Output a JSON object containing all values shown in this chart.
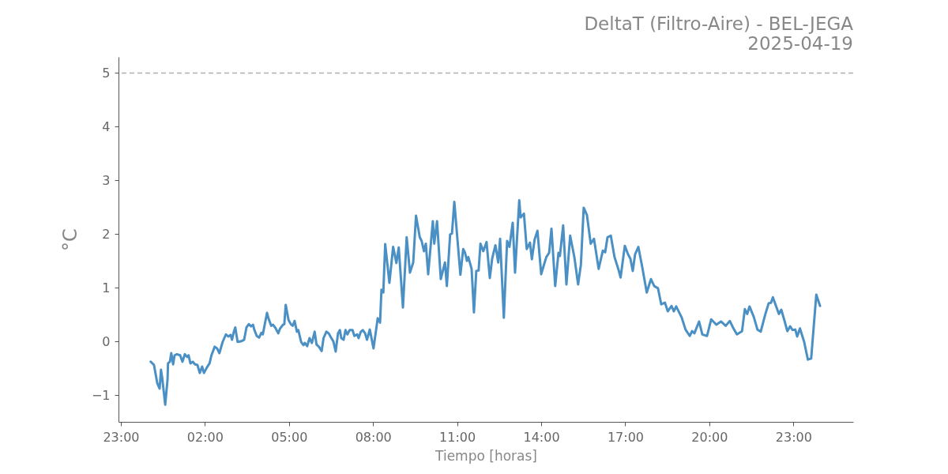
{
  "chart_data": {
    "type": "line",
    "title": "DeltaT (Filtro-Aire) - BEL-JEGA",
    "subtitle": "2025-04-19",
    "xlabel": "Tiempo [horas]",
    "ylabel": "°C",
    "color": "#4a90c4",
    "grid": false,
    "xlim": [
      "2025-04-18T22:55",
      "2025-04-20T01:08"
    ],
    "ylim": [
      -1.5,
      5.3
    ],
    "xticks": [
      {
        "value": "2025-04-18T23:00",
        "label": "23:00"
      },
      {
        "value": "2025-04-19T02:00",
        "label": "02:00"
      },
      {
        "value": "2025-04-19T05:00",
        "label": "05:00"
      },
      {
        "value": "2025-04-19T08:00",
        "label": "08:00"
      },
      {
        "value": "2025-04-19T11:00",
        "label": "11:00"
      },
      {
        "value": "2025-04-19T14:00",
        "label": "14:00"
      },
      {
        "value": "2025-04-19T17:00",
        "label": "17:00"
      },
      {
        "value": "2025-04-19T20:00",
        "label": "20:00"
      },
      {
        "value": "2025-04-19T23:00",
        "label": "23:00"
      }
    ],
    "yticks": [
      {
        "value": -1,
        "label": "−1"
      },
      0,
      1,
      2,
      3,
      4,
      5
    ],
    "ref_lines": [
      {
        "axis": "y",
        "value": 5,
        "color": "#b0b0b0",
        "line_style": "dashed"
      }
    ],
    "x": [
      "2025-04-19T00:04",
      "2025-04-19T00:11",
      "2025-04-19T00:18",
      "2025-04-19T00:23",
      "2025-04-19T00:26",
      "2025-04-19T00:29",
      "2025-04-19T00:35",
      "2025-04-19T00:40",
      "2025-04-19T00:41",
      "2025-04-19T00:45",
      "2025-04-19T00:48",
      "2025-04-19T00:52",
      "2025-04-19T00:55",
      "2025-04-19T01:00",
      "2025-04-19T01:07",
      "2025-04-19T01:12",
      "2025-04-19T01:17",
      "2025-04-19T01:22",
      "2025-04-19T01:25",
      "2025-04-19T01:29",
      "2025-04-19T01:34",
      "2025-04-19T01:39",
      "2025-04-19T01:44",
      "2025-04-19T01:49",
      "2025-04-19T01:54",
      "2025-04-19T01:58",
      "2025-04-19T02:04",
      "2025-04-19T02:10",
      "2025-04-19T02:14",
      "2025-04-19T02:21",
      "2025-04-19T02:26",
      "2025-04-19T02:31",
      "2025-04-19T02:38",
      "2025-04-19T02:45",
      "2025-04-19T02:50",
      "2025-04-19T02:55",
      "2025-04-19T02:58",
      "2025-04-19T03:02",
      "2025-04-19T03:05",
      "2025-04-19T03:10",
      "2025-04-19T03:17",
      "2025-04-19T03:24",
      "2025-04-19T03:29",
      "2025-04-19T03:34",
      "2025-04-19T03:39",
      "2025-04-19T03:43",
      "2025-04-19T03:46",
      "2025-04-19T03:51",
      "2025-04-19T03:56",
      "2025-04-19T04:01",
      "2025-04-19T04:04",
      "2025-04-19T04:10",
      "2025-04-19T04:13",
      "2025-04-19T04:16",
      "2025-04-19T04:22",
      "2025-04-19T04:26",
      "2025-04-19T04:31",
      "2025-04-19T04:37",
      "2025-04-19T04:41",
      "2025-04-19T04:47",
      "2025-04-19T04:50",
      "2025-04-19T04:53",
      "2025-04-19T04:59",
      "2025-04-19T05:04",
      "2025-04-19T05:08",
      "2025-04-19T05:12",
      "2025-04-19T05:17",
      "2025-04-19T05:20",
      "2025-04-19T05:26",
      "2025-04-19T05:31",
      "2025-04-19T05:34",
      "2025-04-19T05:39",
      "2025-04-19T05:44",
      "2025-04-19T05:49",
      "2025-04-19T05:55",
      "2025-04-19T05:59",
      "2025-04-19T06:04",
      "2025-04-19T06:10",
      "2025-04-19T06:14",
      "2025-04-19T06:20",
      "2025-04-19T06:25",
      "2025-04-19T06:30",
      "2025-04-19T06:35",
      "2025-04-19T06:40",
      "2025-04-19T06:45",
      "2025-04-19T06:49",
      "2025-04-19T06:52",
      "2025-04-19T06:57",
      "2025-04-19T07:01",
      "2025-04-19T07:05",
      "2025-04-19T07:10",
      "2025-04-19T07:16",
      "2025-04-19T07:20",
      "2025-04-19T07:26",
      "2025-04-19T07:29",
      "2025-04-19T07:34",
      "2025-04-19T07:38",
      "2025-04-19T07:43",
      "2025-04-19T07:47",
      "2025-04-19T07:53",
      "2025-04-19T08:01",
      "2025-04-19T08:10",
      "2025-04-19T08:15",
      "2025-04-19T08:18",
      "2025-04-19T08:22",
      "2025-04-19T08:26",
      "2025-04-19T08:35",
      "2025-04-19T08:43",
      "2025-04-19T08:50",
      "2025-04-19T08:55",
      "2025-04-19T09:04",
      "2025-04-19T09:12",
      "2025-04-19T09:19",
      "2025-04-19T09:26",
      "2025-04-19T09:32",
      "2025-04-19T09:40",
      "2025-04-19T09:44",
      "2025-04-19T09:49",
      "2025-04-19T09:53",
      "2025-04-19T09:58",
      "2025-04-19T10:08",
      "2025-04-19T10:11",
      "2025-04-19T10:17",
      "2025-04-19T10:25",
      "2025-04-19T10:34",
      "2025-04-19T10:38",
      "2025-04-19T10:45",
      "2025-04-19T10:49",
      "2025-04-19T10:54",
      "2025-04-19T11:01",
      "2025-04-19T11:07",
      "2025-04-19T11:13",
      "2025-04-19T11:17",
      "2025-04-19T11:21",
      "2025-04-19T11:24",
      "2025-04-19T11:31",
      "2025-04-19T11:36",
      "2025-04-19T11:41",
      "2025-04-19T11:46",
      "2025-04-19T11:50",
      "2025-04-19T11:56",
      "2025-04-19T12:03",
      "2025-04-19T12:10",
      "2025-04-19T12:15",
      "2025-04-19T12:22",
      "2025-04-19T12:28",
      "2025-04-19T12:32",
      "2025-04-19T12:40",
      "2025-04-19T12:47",
      "2025-04-19T12:52",
      "2025-04-19T12:59",
      "2025-04-19T13:04",
      "2025-04-19T13:13",
      "2025-04-19T13:16",
      "2025-04-19T13:23",
      "2025-04-19T13:29",
      "2025-04-19T13:36",
      "2025-04-19T13:40",
      "2025-04-19T13:46",
      "2025-04-19T13:52",
      "2025-04-19T14:00",
      "2025-04-19T14:05",
      "2025-04-19T14:11",
      "2025-04-19T14:17",
      "2025-04-19T14:22",
      "2025-04-19T14:30",
      "2025-04-19T14:37",
      "2025-04-19T14:40",
      "2025-04-19T14:47",
      "2025-04-19T14:54",
      "2025-04-19T15:02",
      "2025-04-19T15:11",
      "2025-04-19T15:19",
      "2025-04-19T15:25",
      "2025-04-19T15:31",
      "2025-04-19T15:38",
      "2025-04-19T15:46",
      "2025-04-19T15:53",
      "2025-04-19T16:03",
      "2025-04-19T16:12",
      "2025-04-19T16:17",
      "2025-04-19T16:22",
      "2025-04-19T16:29",
      "2025-04-19T16:37",
      "2025-04-19T16:46",
      "2025-04-19T16:50",
      "2025-04-19T16:59",
      "2025-04-19T17:06",
      "2025-04-19T17:11",
      "2025-04-19T17:16",
      "2025-04-19T17:21",
      "2025-04-19T17:28",
      "2025-04-19T17:36",
      "2025-04-19T17:46",
      "2025-04-19T17:55",
      "2025-04-19T18:02",
      "2025-04-19T18:10",
      "2025-04-19T18:17",
      "2025-04-19T18:25",
      "2025-04-19T18:31",
      "2025-04-19T18:39",
      "2025-04-19T18:44",
      "2025-04-19T18:49",
      "2025-04-19T19:01",
      "2025-04-19T19:09",
      "2025-04-19T19:18",
      "2025-04-19T19:23",
      "2025-04-19T19:28",
      "2025-04-19T19:38",
      "2025-04-19T19:45",
      "2025-04-19T19:55",
      "2025-04-19T20:04",
      "2025-04-19T20:15",
      "2025-04-19T20:25",
      "2025-04-19T20:35",
      "2025-04-19T20:44",
      "2025-04-19T20:51",
      "2025-04-19T20:59",
      "2025-04-19T21:10",
      "2025-04-19T21:16",
      "2025-04-19T21:21",
      "2025-04-19T21:26",
      "2025-04-19T21:35",
      "2025-04-19T21:43",
      "2025-04-19T21:50",
      "2025-04-19T22:00",
      "2025-04-19T22:07",
      "2025-04-19T22:12",
      "2025-04-19T22:16",
      "2025-04-19T22:29",
      "2025-04-19T22:34",
      "2025-04-19T22:41",
      "2025-04-19T22:47",
      "2025-04-19T22:53",
      "2025-04-19T22:58",
      "2025-04-19T23:04",
      "2025-04-19T23:08",
      "2025-04-19T23:14",
      "2025-04-19T23:23",
      "2025-04-19T23:31",
      "2025-04-19T23:38",
      "2025-04-19T23:49",
      "2025-04-19T23:57"
    ],
    "values": [
      -0.38,
      -0.44,
      -0.78,
      -0.88,
      -0.53,
      -0.71,
      -1.18,
      -0.71,
      -0.41,
      -0.38,
      -0.22,
      -0.43,
      -0.26,
      -0.24,
      -0.26,
      -0.38,
      -0.24,
      -0.29,
      -0.26,
      -0.41,
      -0.38,
      -0.43,
      -0.44,
      -0.59,
      -0.47,
      -0.59,
      -0.49,
      -0.41,
      -0.26,
      -0.1,
      -0.13,
      -0.22,
      -0.01,
      0.13,
      0.09,
      0.12,
      0.03,
      0.18,
      0.26,
      -0.01,
      0,
      0.03,
      0.26,
      0.32,
      0.28,
      0.31,
      0.21,
      0.1,
      0.07,
      0.16,
      0.13,
      0.4,
      0.53,
      0.43,
      0.29,
      0.31,
      0.25,
      0.15,
      0.24,
      0.31,
      0.32,
      0.68,
      0.4,
      0.32,
      0.29,
      0.38,
      0.18,
      0.21,
      -0.01,
      -0.07,
      -0.03,
      -0.09,
      0.06,
      -0.03,
      0.18,
      -0.06,
      -0.1,
      -0.18,
      0.06,
      0.18,
      0.15,
      0.07,
      0,
      -0.19,
      0.15,
      0.21,
      0.06,
      0.03,
      0.21,
      0.13,
      0.21,
      0.21,
      0.1,
      0.13,
      0.06,
      0.18,
      0.21,
      0.15,
      0.03,
      0.22,
      -0.13,
      0.43,
      0.35,
      0.96,
      0.91,
      1.81,
      1.09,
      1.76,
      1.46,
      1.75,
      0.63,
      1.94,
      1.28,
      1.47,
      2.34,
      1.94,
      1.87,
      1.68,
      1.82,
      1.25,
      2.24,
      1.82,
      2.24,
      1.16,
      1.47,
      1.03,
      1.99,
      2.01,
      2.6,
      1.87,
      1.24,
      1.72,
      1.65,
      1.5,
      1.57,
      1.35,
      0.54,
      1.31,
      1.32,
      1.82,
      1.68,
      1.85,
      1.18,
      1.54,
      1.79,
      1.47,
      1.91,
      0.44,
      1.87,
      1.76,
      2.21,
      1.28,
      2.63,
      2.31,
      2.38,
      1.72,
      1.84,
      1.53,
      1.9,
      2.06,
      1.25,
      1.4,
      1.57,
      1.65,
      2.1,
      1.03,
      1.65,
      1.59,
      2.16,
      1.06,
      1.97,
      1.57,
      1.06,
      1.43,
      2.49,
      2.35,
      1.82,
      1.91,
      1.35,
      1.69,
      1.66,
      1.94,
      1.97,
      1.57,
      1.32,
      1.19,
      1.78,
      1.62,
      1.54,
      1.31,
      1.62,
      1.76,
      1.4,
      0.91,
      1.16,
      1.03,
      0.99,
      0.69,
      0.72,
      0.56,
      0.66,
      0.56,
      0.65,
      0.44,
      0.22,
      0.1,
      0.19,
      0.15,
      0.37,
      0.13,
      0.1,
      0.41,
      0.31,
      0.37,
      0.29,
      0.38,
      0.25,
      0.13,
      0.19,
      0.6,
      0.51,
      0.65,
      0.46,
      0.22,
      0.18,
      0.51,
      0.71,
      0.72,
      0.82,
      0.51,
      0.59,
      0.38,
      0.19,
      0.28,
      0.21,
      0.22,
      0.09,
      0.24,
      -0.01,
      -0.34,
      -0.32,
      0.87,
      0.66
    ]
  }
}
